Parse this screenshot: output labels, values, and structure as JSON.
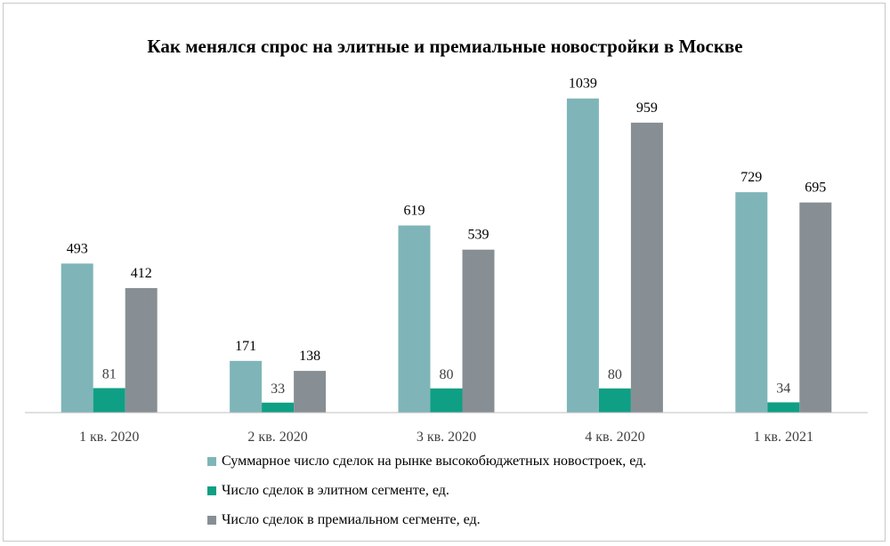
{
  "chart_data": {
    "type": "bar",
    "title": "Как менялся спрос на элитные и премиальные новостройки  в Москве",
    "categories": [
      "1 кв. 2020",
      "2 кв. 2020",
      "3 кв. 2020",
      "4 кв. 2020",
      "1 кв. 2021"
    ],
    "series": [
      {
        "name": "Суммарное число сделок на рынке высокобюджетных новостроек, ед.",
        "values": [
          493,
          171,
          619,
          1039,
          729
        ],
        "color": "#7fb5b8"
      },
      {
        "name": "Число сделок в элитном сегменте, ед.",
        "values": [
          81,
          33,
          80,
          80,
          34
        ],
        "color": "#0f9f84"
      },
      {
        "name": "Число сделок в премиальном сегменте, ед.",
        "values": [
          412,
          138,
          539,
          959,
          695
        ],
        "color": "#878f94"
      }
    ],
    "ylim": [
      0,
      1100
    ],
    "grid": false,
    "legend": "bottom",
    "data_labels": true
  }
}
